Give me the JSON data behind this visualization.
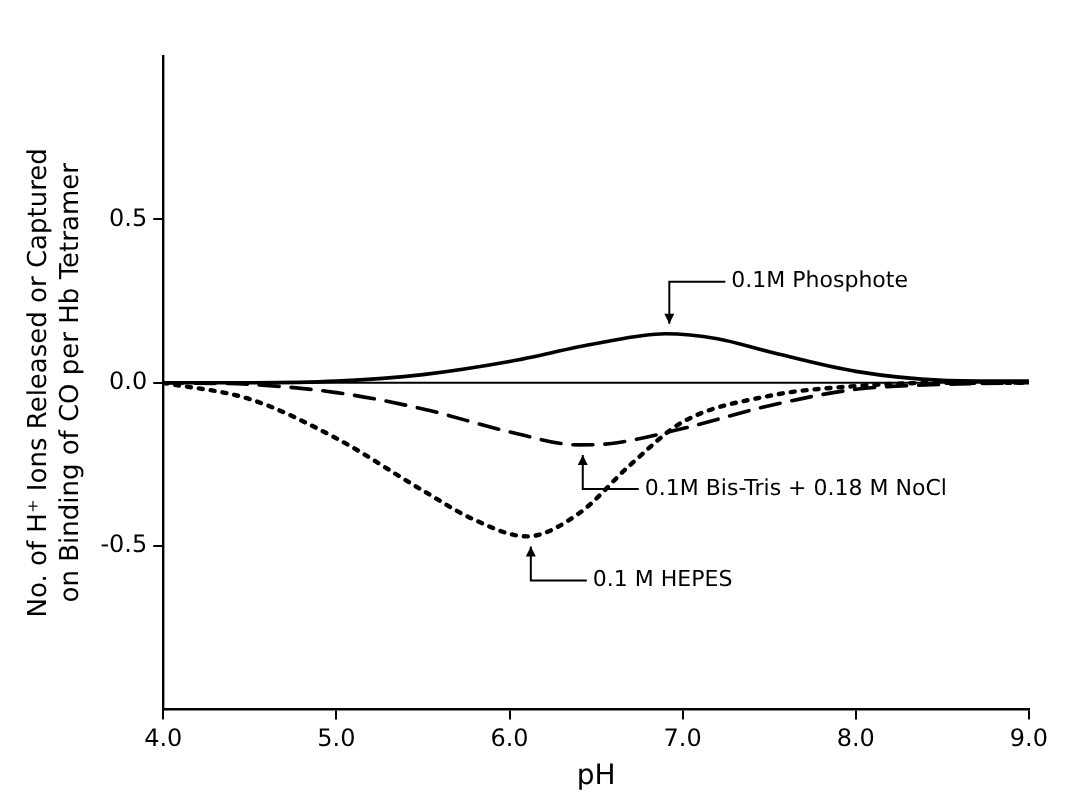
{
  "chart_data": {
    "type": "line",
    "xlabel": "pH",
    "ylabel": "No. of H⁺ Ions Released or Captured on Binding of CO per Hb Tetramer",
    "xlim": [
      4.0,
      9.0
    ],
    "xticks": [
      {
        "value": 4,
        "label": "4.0"
      },
      {
        "value": 5,
        "label": "5.0"
      },
      {
        "value": 6,
        "label": "6.0"
      },
      {
        "value": 7,
        "label": "7.0"
      },
      {
        "value": 8,
        "label": "8.0"
      },
      {
        "value": 9,
        "label": "9.0"
      }
    ],
    "ylim": [
      -1.0,
      1.0
    ],
    "yticks": [
      {
        "value": -0.5,
        "label": "-0.5"
      },
      {
        "value": 0,
        "label": "0.0"
      },
      {
        "value": 0.5,
        "label": "0.5"
      }
    ],
    "marker": "none",
    "ref_lines": [
      {
        "axis": "y",
        "value": 0,
        "color": "#000000"
      }
    ],
    "series": [
      {
        "name": "0.1M Phosphote",
        "color": "#000000",
        "line_style": "solid",
        "x": [
          4.0,
          4.5,
          5.0,
          5.5,
          6.0,
          6.5,
          6.9,
          7.2,
          7.5,
          8.0,
          8.5,
          9.0
        ],
        "values": [
          0,
          0,
          0.005,
          0.025,
          0.065,
          0.12,
          0.15,
          0.135,
          0.095,
          0.035,
          0.008,
          0.005
        ]
      },
      {
        "name": "0.1M Bis-Tris + 0.18 M NoCl",
        "color": "#000000",
        "line_style": "dashed",
        "x": [
          4.0,
          4.5,
          5.0,
          5.5,
          6.0,
          6.4,
          6.6,
          7.0,
          7.5,
          8.0,
          8.5,
          9.0
        ],
        "values": [
          0,
          -0.005,
          -0.03,
          -0.08,
          -0.15,
          -0.19,
          -0.185,
          -0.14,
          -0.07,
          -0.02,
          -0.005,
          0
        ]
      },
      {
        "name": "0.1 M HEPES",
        "color": "#000000",
        "line_style": "dotted",
        "x": [
          4.0,
          4.5,
          5.0,
          5.5,
          5.8,
          6.1,
          6.4,
          6.7,
          7.0,
          7.5,
          8.0,
          8.5,
          9.0
        ],
        "values": [
          0,
          -0.05,
          -0.17,
          -0.33,
          -0.42,
          -0.47,
          -0.4,
          -0.25,
          -0.12,
          -0.04,
          -0.01,
          0,
          0
        ]
      }
    ]
  }
}
